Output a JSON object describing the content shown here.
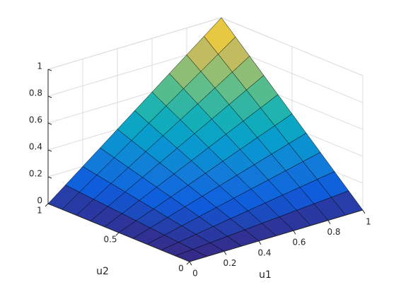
{
  "chart_data": {
    "type": "surface",
    "colormap": "parula",
    "xlabel": "u1",
    "ylabel": "u2",
    "x": [
      0,
      0.1,
      0.2,
      0.3,
      0.4,
      0.5,
      0.6,
      0.7,
      0.8,
      0.9,
      1
    ],
    "y": [
      0,
      0.1,
      0.2,
      0.3,
      0.4,
      0.5,
      0.6,
      0.7,
      0.8,
      0.9,
      1
    ],
    "z": [
      [
        0,
        0,
        0,
        0,
        0,
        0,
        0,
        0,
        0,
        0,
        0
      ],
      [
        0,
        0.01,
        0.02,
        0.03,
        0.04,
        0.05,
        0.06,
        0.07,
        0.08,
        0.09,
        0.1
      ],
      [
        0,
        0.02,
        0.04,
        0.06,
        0.08,
        0.1,
        0.12,
        0.14,
        0.16,
        0.18,
        0.2
      ],
      [
        0,
        0.03,
        0.06,
        0.09,
        0.12,
        0.15,
        0.18,
        0.21,
        0.24,
        0.27,
        0.3
      ],
      [
        0,
        0.04,
        0.08,
        0.12,
        0.16,
        0.2,
        0.24,
        0.28,
        0.32,
        0.36,
        0.4
      ],
      [
        0,
        0.05,
        0.1,
        0.15,
        0.2,
        0.25,
        0.3,
        0.35,
        0.4,
        0.45,
        0.5
      ],
      [
        0,
        0.06,
        0.12,
        0.18,
        0.24,
        0.3,
        0.36,
        0.42,
        0.48,
        0.54,
        0.6
      ],
      [
        0,
        0.07,
        0.14,
        0.21,
        0.28,
        0.35,
        0.42,
        0.49,
        0.56,
        0.63,
        0.7
      ],
      [
        0,
        0.08,
        0.16,
        0.24,
        0.32,
        0.4,
        0.48,
        0.56,
        0.64,
        0.72,
        0.8
      ],
      [
        0,
        0.09,
        0.18,
        0.27,
        0.36,
        0.45,
        0.54,
        0.63,
        0.72,
        0.81,
        0.9
      ],
      [
        0,
        0.1,
        0.2,
        0.3,
        0.4,
        0.5,
        0.6,
        0.7,
        0.8,
        0.9,
        1
      ]
    ],
    "xlim": [
      0,
      1
    ],
    "xticks": [
      0,
      0.2,
      0.4,
      0.6,
      0.8,
      1
    ],
    "ylim": [
      0,
      1
    ],
    "yticks": [
      0,
      0.5,
      1
    ],
    "zlim": [
      0,
      1
    ],
    "zticks": [
      0,
      0.2,
      0.4,
      0.6,
      0.8,
      1
    ],
    "grid": true
  }
}
